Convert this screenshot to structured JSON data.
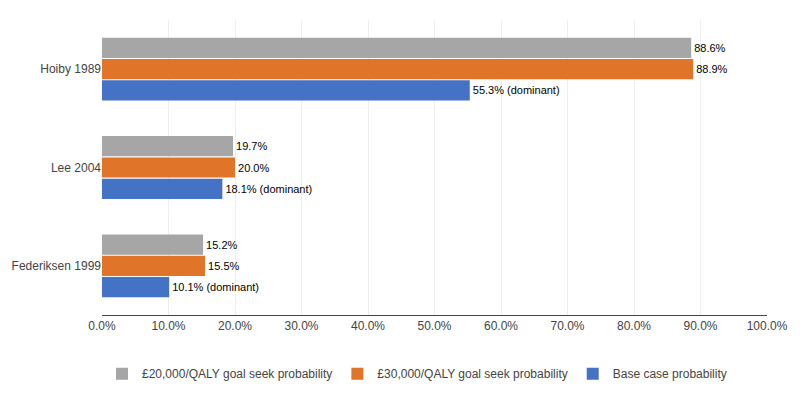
{
  "chart_data": {
    "type": "bar",
    "orientation": "horizontal",
    "categories": [
      "Federiksen 1999",
      "Lee 2004",
      "Hoiby 1989"
    ],
    "series": [
      {
        "name": "£20,000/QALY goal seek probability",
        "color": "#a6a6a6",
        "values": [
          15.2,
          19.7,
          88.6
        ],
        "value_labels": [
          "15.2%",
          "19.7%",
          "88.6%"
        ]
      },
      {
        "name": "£30,000/QALY goal seek probability",
        "color": "#e07428",
        "values": [
          15.5,
          20.0,
          88.9
        ],
        "value_labels": [
          "15.5%",
          "20.0%",
          "88.9%"
        ]
      },
      {
        "name": "Base case probability",
        "color": "#4472c4",
        "values": [
          10.1,
          18.1,
          55.3
        ],
        "value_labels": [
          "10.1% (dominant)",
          "18.1% (dominant)",
          "55.3% (dominant)"
        ]
      }
    ],
    "xlim": [
      0,
      100
    ],
    "xticks": [
      {
        "value": 0,
        "label": "0.0%"
      },
      {
        "value": 10,
        "label": "10.0%"
      },
      {
        "value": 20,
        "label": "20.0%"
      },
      {
        "value": 30,
        "label": "30.0%"
      },
      {
        "value": 40,
        "label": "40.0%"
      },
      {
        "value": 50,
        "label": "50.0%"
      },
      {
        "value": 60,
        "label": "60.0%"
      },
      {
        "value": 70,
        "label": "70.0%"
      },
      {
        "value": 80,
        "label": "80.0%"
      },
      {
        "value": 90,
        "label": "90.0%"
      },
      {
        "value": 100,
        "label": "100.0%"
      }
    ],
    "grid": true,
    "legend": "bottom",
    "data_labels": true
  }
}
